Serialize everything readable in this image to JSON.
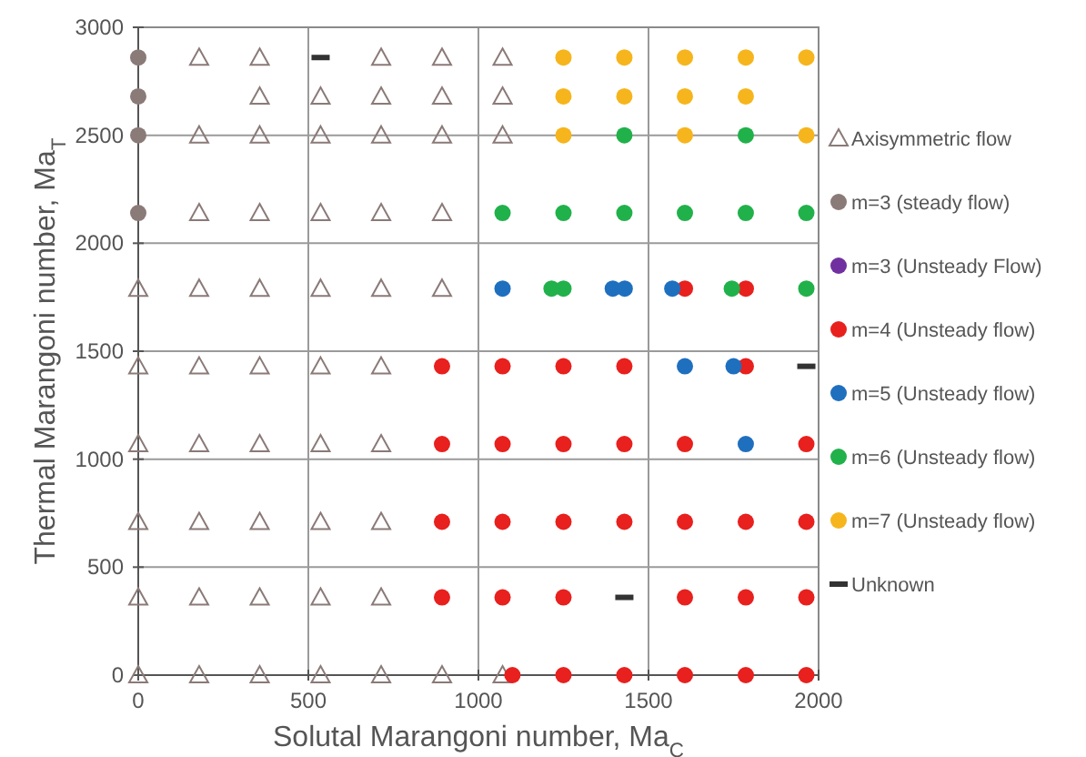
{
  "chart_data": {
    "type": "scatter",
    "xlabel": "Solutal Marangoni number, Ma$_{C}$",
    "ylabel": "Thermal Marangoni number, Ma$_{T}$",
    "xlim": [
      0,
      2000
    ],
    "ylim": [
      0,
      3000
    ],
    "xticks": [
      0,
      500,
      1000,
      1500,
      2000
    ],
    "yticks": [
      0,
      500,
      1000,
      1500,
      2000,
      2500,
      3000
    ],
    "grid": true,
    "legend": "right",
    "series": [
      {
        "name": "Axisymmetric flow",
        "color": "#8a7a78",
        "marker": "triangle",
        "x": [
          179,
          357,
          714,
          893,
          1071,
          357,
          536,
          714,
          893,
          1071,
          179,
          357,
          536,
          714,
          893,
          1071,
          179,
          357,
          536,
          714,
          893,
          0,
          179,
          357,
          536,
          714,
          893,
          0,
          179,
          357,
          536,
          714,
          0,
          179,
          357,
          536,
          714,
          0,
          179,
          357,
          536,
          714,
          0,
          179,
          357,
          536,
          714,
          0,
          179,
          357,
          536,
          714,
          893,
          1071
        ],
        "values": [
          2860,
          2860,
          2860,
          2860,
          2860,
          2680,
          2680,
          2680,
          2680,
          2680,
          2500,
          2500,
          2500,
          2500,
          2500,
          2500,
          2140,
          2140,
          2140,
          2140,
          2140,
          1790,
          1790,
          1790,
          1790,
          1790,
          1790,
          1430,
          1430,
          1430,
          1430,
          1430,
          1070,
          1070,
          1070,
          1070,
          1070,
          710,
          710,
          710,
          710,
          710,
          360,
          360,
          360,
          360,
          360,
          0,
          0,
          0,
          0,
          0,
          0,
          0
        ]
      },
      {
        "name": "m=3 (steady flow)",
        "color": "#8a7a78",
        "marker": "circle",
        "x": [
          0,
          0,
          0,
          0
        ],
        "values": [
          2860,
          2680,
          2500,
          2140
        ]
      },
      {
        "name": "m=3 (Unsteady Flow)",
        "color": "#7030a0",
        "marker": "circle"
      },
      {
        "name": "m=4 (Unsteady flow)",
        "color": "#e8201e",
        "marker": "circle",
        "x": [
          1607,
          1786,
          893,
          1071,
          1250,
          1429,
          1786,
          893,
          1071,
          1250,
          1429,
          1607,
          1964,
          893,
          1071,
          1250,
          1429,
          1607,
          1786,
          1964,
          893,
          1071,
          1250,
          1607,
          1786,
          1964,
          1100,
          1250,
          1429,
          1607,
          1786,
          1964
        ],
        "values": [
          1790,
          1790,
          1430,
          1430,
          1430,
          1430,
          1430,
          1070,
          1070,
          1070,
          1070,
          1070,
          1070,
          710,
          710,
          710,
          710,
          710,
          710,
          710,
          360,
          360,
          360,
          360,
          360,
          360,
          0,
          0,
          0,
          0,
          0,
          0
        ]
      },
      {
        "name": "m=5 (Unsteady flow)",
        "color": "#1f6fbf",
        "marker": "circle",
        "x": [
          1071,
          1395,
          1430,
          1570,
          1607,
          1750,
          1786
        ],
        "values": [
          1790,
          1790,
          1790,
          1790,
          1430,
          1430,
          1070
        ]
      },
      {
        "name": "m=6 (Unsteady flow)",
        "color": "#21b14b",
        "marker": "circle",
        "x": [
          1429,
          1786,
          1071,
          1250,
          1429,
          1607,
          1786,
          1964,
          1215,
          1250,
          1745,
          1964
        ],
        "values": [
          2500,
          2500,
          2140,
          2140,
          2140,
          2140,
          2140,
          2140,
          1790,
          1790,
          1790,
          1790
        ]
      },
      {
        "name": "m=7 (Unsteady flow)",
        "color": "#f6b51c",
        "marker": "circle",
        "x": [
          1250,
          1429,
          1607,
          1786,
          1964,
          1250,
          1429,
          1607,
          1786,
          1250,
          1607,
          1964
        ],
        "values": [
          2860,
          2860,
          2860,
          2860,
          2860,
          2680,
          2680,
          2680,
          2680,
          2500,
          2500,
          2500
        ]
      },
      {
        "name": "Unknown",
        "color": "#333333",
        "x": [
          536,
          1964,
          1429
        ],
        "values": [
          2860,
          1430,
          360
        ]
      }
    ]
  }
}
